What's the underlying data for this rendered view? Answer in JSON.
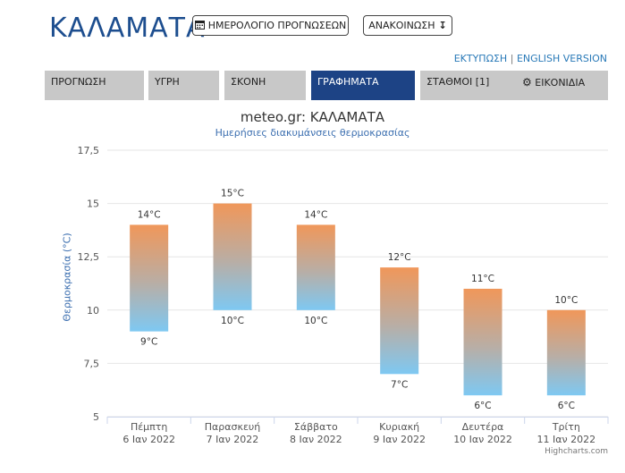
{
  "header": {
    "city": "ΚΑΛΑΜΑΤΑ",
    "calendar_button": "ΗΜΕΡΟΛΟΓΙΟ ΠΡΟΓΝΩΣΕΩΝ",
    "announcement_button": "ΑΝΑΚΟΙΝΩΣΗ",
    "print_link": "ΕΚΤΥΠΩΣΗ",
    "separator": "|",
    "english_link": "ENGLISH VERSION"
  },
  "tabs": [
    {
      "label": "ΠΡΟΓΝΩΣΗ"
    },
    {
      "label": "ΥΓΡΗ"
    },
    {
      "label": "ΣΚΟΝΗ"
    },
    {
      "label": "ΓΡΑΦΗΜΑΤΑ"
    },
    {
      "label": "ΣΤΑΘΜΟΙ [1]"
    },
    {
      "label": "ΕΙΚΟΝΙΔΙΑ"
    }
  ],
  "icons": {
    "calendar": "calendar-icon",
    "announcement": "arrow-down-icon",
    "settings": "gear-icon"
  },
  "colors": {
    "brand": "#1d4e8f",
    "active_tab": "#1d4385",
    "tab": "#c8c8c8",
    "bar_top": "#f0975a",
    "bar_bottom": "#7ec8f2"
  },
  "chart_data": {
    "type": "bar",
    "title": "meteo.gr: ΚΑΛΑΜΑΤΑ",
    "subtitle": "Ημερήσιες διακυμάνσεις θερμοκρασίας",
    "ylabel": "Θερμοκρασία (°C)",
    "ylim": [
      5,
      17.5
    ],
    "yticks": [
      "17,5",
      "15",
      "12,5",
      "10",
      "7,5",
      "5"
    ],
    "categories": [
      {
        "day": "Πέμπτη",
        "date": "6 Ιαν 2022"
      },
      {
        "day": "Παρασκευή",
        "date": "7 Ιαν 2022"
      },
      {
        "day": "Σάββατο",
        "date": "8 Ιαν 2022"
      },
      {
        "day": "Κυριακή",
        "date": "9 Ιαν 2022"
      },
      {
        "day": "Δευτέρα",
        "date": "10 Ιαν 2022"
      },
      {
        "day": "Τρίτη",
        "date": "11 Ιαν 2022"
      }
    ],
    "min": [
      9,
      10,
      10,
      7,
      6,
      6
    ],
    "max": [
      14,
      15,
      14,
      12,
      11,
      10
    ],
    "unit": "°C",
    "credits": "Highcharts.com"
  }
}
